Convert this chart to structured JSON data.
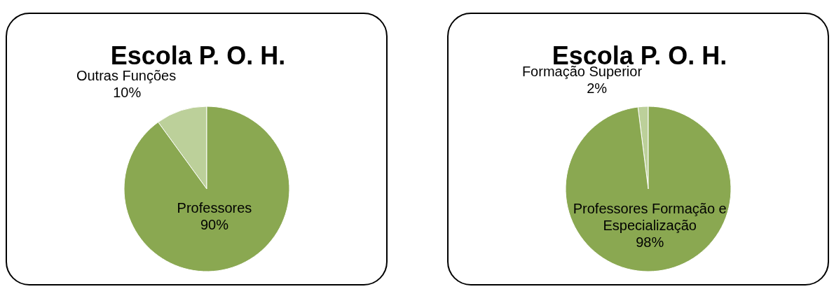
{
  "chart_data": [
    {
      "type": "pie",
      "title": "Escola P. O. H.",
      "categories": [
        "Outras Funções",
        "Professores"
      ],
      "values": [
        10,
        90
      ],
      "value_labels": [
        "10%",
        "90%"
      ],
      "colors": [
        "#bcd09a",
        "#8aa851"
      ]
    },
    {
      "type": "pie",
      "title": "Escola P. O. H.",
      "categories": [
        "Formação Superior",
        "Professores Formação e Especialização"
      ],
      "values": [
        2,
        98
      ],
      "value_labels": [
        "2%",
        "98%"
      ],
      "colors": [
        "#bcd09a",
        "#8aa851"
      ]
    }
  ]
}
